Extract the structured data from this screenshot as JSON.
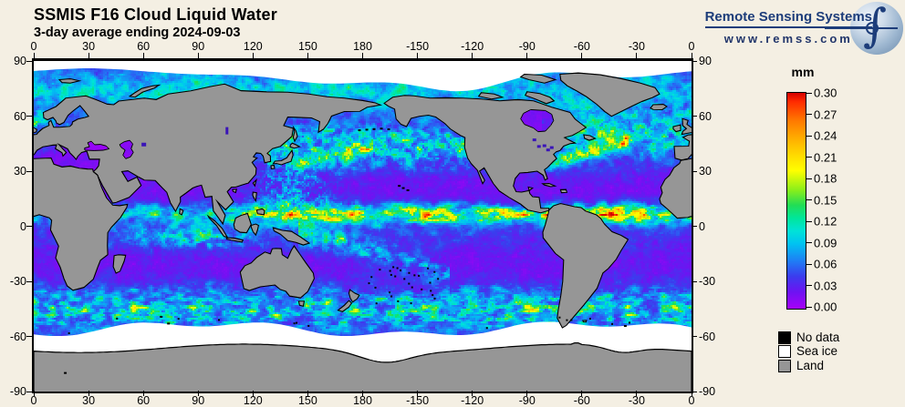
{
  "header": {
    "title": "SSMIS F16 Cloud Liquid Water",
    "subtitle": "3-day average ending 2024-09-03"
  },
  "logo": {
    "name": "Remote Sensing Systems",
    "url": "www.remss.com"
  },
  "map": {
    "lon_ticks": [
      "0",
      "30",
      "60",
      "90",
      "120",
      "150",
      "180",
      "-150",
      "-120",
      "-90",
      "-60",
      "-30",
      "0"
    ],
    "lat_ticks": [
      "90",
      "60",
      "30",
      "0",
      "-30",
      "-60",
      "-90"
    ]
  },
  "colorbar": {
    "unit": "mm",
    "tick_labels": [
      "0.30",
      "0.27",
      "0.24",
      "0.21",
      "0.18",
      "0.15",
      "0.12",
      "0.09",
      "0.06",
      "0.03",
      "0.00"
    ],
    "min_value": 0.0,
    "max_value": 0.3,
    "gradient_stops": [
      {
        "p": 0.0,
        "c": "#d40000"
      },
      {
        "p": 0.04,
        "c": "#ff2a00"
      },
      {
        "p": 0.13,
        "c": "#ff7a00"
      },
      {
        "p": 0.22,
        "c": "#ffb300"
      },
      {
        "p": 0.3,
        "c": "#ffe000"
      },
      {
        "p": 0.36,
        "c": "#ffff00"
      },
      {
        "p": 0.45,
        "c": "#8aef1a"
      },
      {
        "p": 0.52,
        "c": "#22dd55"
      },
      {
        "p": 0.58,
        "c": "#00e69a"
      },
      {
        "p": 0.64,
        "c": "#00e2d8"
      },
      {
        "p": 0.7,
        "c": "#00c2f2"
      },
      {
        "p": 0.78,
        "c": "#1f7df5"
      },
      {
        "p": 0.85,
        "c": "#3b3cee"
      },
      {
        "p": 0.92,
        "c": "#6c14f2"
      },
      {
        "p": 1.0,
        "c": "#a600f8"
      }
    ]
  },
  "legend": [
    {
      "label": "No data",
      "color": "#000000"
    },
    {
      "label": "Sea ice",
      "color": "#ffffff"
    },
    {
      "label": "Land",
      "color": "#969696"
    }
  ]
}
